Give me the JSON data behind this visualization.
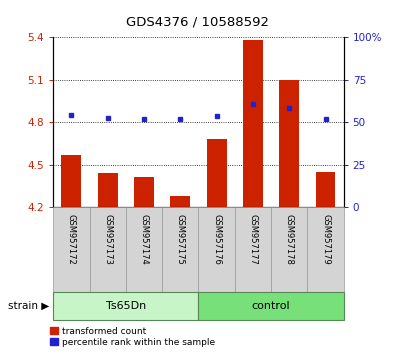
{
  "title": "GDS4376 / 10588592",
  "samples": [
    "GSM957172",
    "GSM957173",
    "GSM957174",
    "GSM957175",
    "GSM957176",
    "GSM957177",
    "GSM957178",
    "GSM957179"
  ],
  "red_values": [
    4.57,
    4.44,
    4.41,
    4.28,
    4.68,
    5.38,
    5.1,
    4.45
  ],
  "blue_values": [
    4.85,
    4.83,
    4.82,
    4.82,
    4.84,
    4.93,
    4.9,
    4.82
  ],
  "ylim_left": [
    4.2,
    5.4
  ],
  "ylim_right": [
    0,
    100
  ],
  "yticks_left": [
    4.2,
    4.5,
    4.8,
    5.1,
    5.4
  ],
  "yticks_right": [
    0,
    25,
    50,
    75,
    100
  ],
  "groups": [
    {
      "label": "Ts65Dn",
      "indices": [
        0,
        1,
        2,
        3
      ],
      "color": "#c8f5c8"
    },
    {
      "label": "control",
      "indices": [
        4,
        5,
        6,
        7
      ],
      "color": "#78e078"
    }
  ],
  "bar_bottom": 4.2,
  "group_label": "strain",
  "bar_color": "#cc2200",
  "dot_color": "#2222cc",
  "label_color_red": "#cc2200",
  "label_color_blue": "#2222cc",
  "sample_box_color": "#d4d4d4",
  "sample_box_edge": "#999999"
}
